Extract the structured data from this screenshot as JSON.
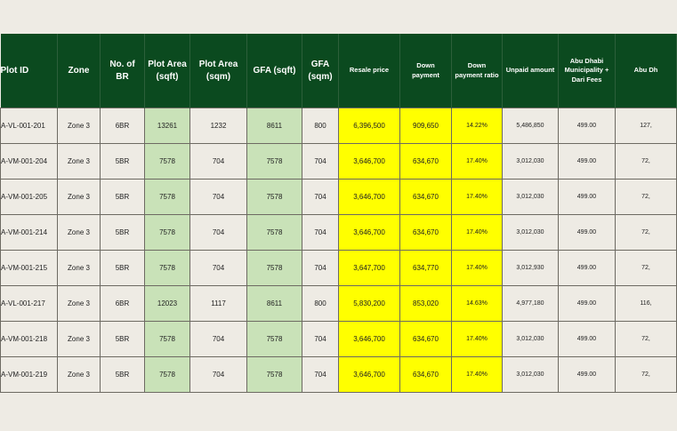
{
  "colors": {
    "header_bg": "#0b4a1f",
    "highlight_green": "#c9e2b8",
    "highlight_yellow": "#ffff00",
    "background": "#eeebe4"
  },
  "headers": [
    "Plot ID",
    "Zone",
    "No. of BR",
    "Plot Area (sqft)",
    "Plot Area (sqm)",
    "GFA (sqft)",
    "GFA (sqm)",
    "Resale price",
    "Down payment",
    "Down payment ratio",
    "Unpaid amount",
    "Abu Dhabi Municipality + Dari Fees",
    "Abu Dh"
  ],
  "rows": [
    [
      "A-VL-001-201",
      "Zone 3",
      "6BR",
      "13261",
      "1232",
      "8611",
      "800",
      "6,396,500",
      "909,650",
      "14.22%",
      "5,486,850",
      "499.00",
      "127,"
    ],
    [
      "A-VM-001-204",
      "Zone 3",
      "5BR",
      "7578",
      "704",
      "7578",
      "704",
      "3,646,700",
      "634,670",
      "17.40%",
      "3,012,030",
      "499.00",
      "72,"
    ],
    [
      "A-VM-001-205",
      "Zone 3",
      "5BR",
      "7578",
      "704",
      "7578",
      "704",
      "3,646,700",
      "634,670",
      "17.40%",
      "3,012,030",
      "499.00",
      "72,"
    ],
    [
      "A-VM-001-214",
      "Zone 3",
      "5BR",
      "7578",
      "704",
      "7578",
      "704",
      "3,646,700",
      "634,670",
      "17.40%",
      "3,012,030",
      "499.00",
      "72,"
    ],
    [
      "A-VM-001-215",
      "Zone 3",
      "5BR",
      "7578",
      "704",
      "7578",
      "704",
      "3,647,700",
      "634,770",
      "17.40%",
      "3,012,930",
      "499.00",
      "72,"
    ],
    [
      "A-VL-001-217",
      "Zone 3",
      "6BR",
      "12023",
      "1117",
      "8611",
      "800",
      "5,830,200",
      "853,020",
      "14.63%",
      "4,977,180",
      "499.00",
      "116,"
    ],
    [
      "A-VM-001-218",
      "Zone 3",
      "5BR",
      "7578",
      "704",
      "7578",
      "704",
      "3,646,700",
      "634,670",
      "17.40%",
      "3,012,030",
      "499.00",
      "72,"
    ],
    [
      "A-VM-001-219",
      "Zone 3",
      "5BR",
      "7578",
      "704",
      "7578",
      "704",
      "3,646,700",
      "634,670",
      "17.40%",
      "3,012,030",
      "499.00",
      "72,"
    ]
  ]
}
